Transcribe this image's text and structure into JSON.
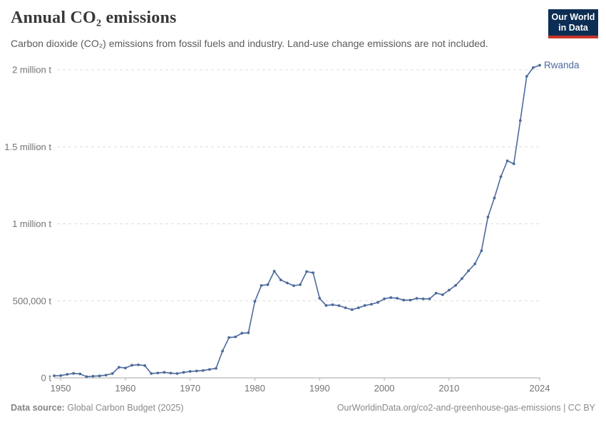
{
  "header": {
    "title": "Annual CO₂ emissions",
    "subtitle": "Carbon dioxide (CO₂) emissions from fossil fuels and industry. Land-use change emissions are not included."
  },
  "logo": {
    "line1": "Our World",
    "line2": "in Data",
    "bg_color": "#0d2e54",
    "accent_color": "#c9342a"
  },
  "chart_data": {
    "type": "line",
    "title": "Annual CO₂ emissions",
    "xlabel": "",
    "ylabel": "",
    "xlim": [
      1949,
      2024
    ],
    "ylim": [
      0,
      2000000
    ],
    "grid": "horizontal dashed gridlines",
    "legend_position": "label at end of line",
    "x_ticks": [
      1950,
      1960,
      1970,
      1980,
      1990,
      2000,
      2010,
      2024
    ],
    "y_ticks": [
      {
        "value": 0,
        "label": "0 t"
      },
      {
        "value": 500000,
        "label": "500,000 t"
      },
      {
        "value": 1000000,
        "label": "1 million t"
      },
      {
        "value": 1500000,
        "label": "1.5 million t"
      },
      {
        "value": 2000000,
        "label": "2 million t"
      }
    ],
    "colors": {
      "line": "#4c6a9c",
      "gridline": "#dcdcdc",
      "axis": "#a3a3a3",
      "tick_text": "#737373"
    },
    "series": [
      {
        "name": "Rwanda",
        "color": "#4c6a9c",
        "x": [
          1949,
          1950,
          1951,
          1952,
          1953,
          1954,
          1955,
          1956,
          1957,
          1958,
          1959,
          1960,
          1961,
          1962,
          1963,
          1964,
          1965,
          1966,
          1967,
          1968,
          1969,
          1970,
          1971,
          1972,
          1973,
          1974,
          1975,
          1976,
          1977,
          1978,
          1979,
          1980,
          1981,
          1982,
          1983,
          1984,
          1985,
          1986,
          1987,
          1988,
          1989,
          1990,
          1991,
          1992,
          1993,
          1994,
          1995,
          1996,
          1997,
          1998,
          1999,
          2000,
          2001,
          2002,
          2003,
          2004,
          2005,
          2006,
          2007,
          2008,
          2009,
          2010,
          2011,
          2012,
          2013,
          2014,
          2015,
          2016,
          2017,
          2018,
          2019,
          2020,
          2021,
          2022,
          2023,
          2024
        ],
        "values": [
          14000,
          15000,
          23000,
          29000,
          26000,
          8000,
          11000,
          13000,
          18000,
          28000,
          69000,
          64000,
          82000,
          85000,
          80000,
          28000,
          32000,
          36000,
          31000,
          28000,
          36000,
          42000,
          45000,
          48000,
          55000,
          62000,
          174000,
          262000,
          266000,
          290000,
          293000,
          497000,
          600000,
          605000,
          693000,
          636000,
          616000,
          598000,
          605000,
          690000,
          682000,
          517000,
          470000,
          475000,
          469000,
          455000,
          443000,
          455000,
          470000,
          478000,
          490000,
          513000,
          521000,
          517000,
          505000,
          505000,
          516000,
          513000,
          513000,
          550000,
          540000,
          570000,
          600000,
          645000,
          695000,
          740000,
          825000,
          1044000,
          1167000,
          1306000,
          1409000,
          1390000,
          1670000,
          1957000,
          2014000,
          2029000
        ]
      }
    ]
  },
  "footer": {
    "source_bold": "Data source:",
    "source": "Global Carbon Budget (2025)",
    "credit": "OurWorldinData.org/co2-and-greenhouse-gas-emissions | CC BY"
  }
}
